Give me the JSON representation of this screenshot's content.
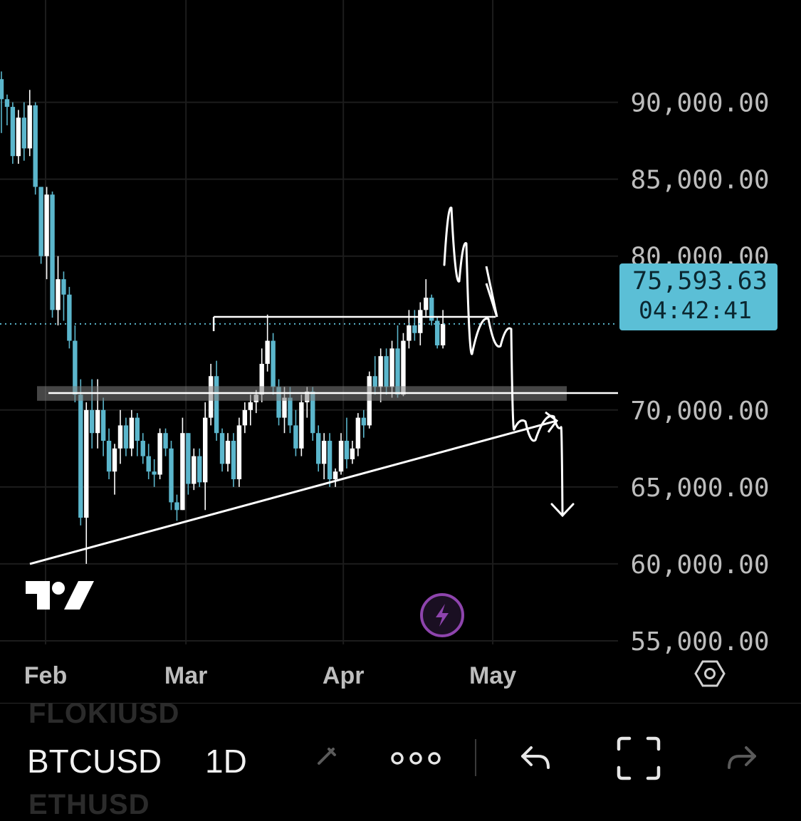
{
  "chart_data": {
    "type": "candlestick",
    "symbol": "BTCUSD",
    "interval": "1D",
    "ylim": [
      51500,
      95000
    ],
    "y_ticks": [
      "90,000.00",
      "85,000.00",
      "80,000.00",
      "75,593.63",
      "70,000.00",
      "65,000.00",
      "60,000.00",
      "55,000.00"
    ],
    "y_tick_values": [
      90000,
      85000,
      80000,
      70000,
      65000,
      60000,
      55000
    ],
    "x_ticks": [
      "Feb",
      "Mar",
      "Apr",
      "May"
    ],
    "last_price": "75,593.63",
    "countdown": "04:42:41",
    "last_price_value": 75593.63,
    "candles": [
      [
        91500,
        92000,
        88000,
        90200
      ],
      [
        90200,
        90500,
        88500,
        89700
      ],
      [
        89700,
        90000,
        86000,
        86500
      ],
      [
        86500,
        89500,
        86000,
        89000
      ],
      [
        89000,
        90000,
        86200,
        87000
      ],
      [
        87000,
        90800,
        86500,
        89800
      ],
      [
        89800,
        90000,
        84000,
        84500
      ],
      [
        84500,
        84500,
        79500,
        80000
      ],
      [
        80000,
        84500,
        78500,
        84000
      ],
      [
        84000,
        84200,
        76000,
        76500
      ],
      [
        76500,
        80000,
        75500,
        78500
      ],
      [
        78500,
        79000,
        75800,
        77500
      ],
      [
        77500,
        78000,
        74000,
        74500
      ],
      [
        74500,
        75500,
        70500,
        71000
      ],
      [
        71000,
        72000,
        62500,
        63000
      ],
      [
        63000,
        70500,
        60000,
        70000
      ],
      [
        70000,
        72000,
        67500,
        68500
      ],
      [
        68500,
        72000,
        67500,
        70000
      ],
      [
        70000,
        70800,
        67000,
        68000
      ],
      [
        68000,
        68800,
        65500,
        66000
      ],
      [
        66000,
        67800,
        64500,
        67500
      ],
      [
        67500,
        70000,
        66500,
        69000
      ],
      [
        69000,
        69500,
        67000,
        67500
      ],
      [
        67500,
        70000,
        67000,
        69500
      ],
      [
        69500,
        69800,
        67000,
        68000
      ],
      [
        68000,
        68500,
        66500,
        67000
      ],
      [
        67000,
        67800,
        65500,
        66000
      ],
      [
        66000,
        66800,
        65000,
        65800
      ],
      [
        65800,
        68800,
        65500,
        68500
      ],
      [
        68500,
        68800,
        67000,
        67500
      ],
      [
        67500,
        68000,
        63500,
        64000
      ],
      [
        64000,
        64500,
        62800,
        63500
      ],
      [
        63500,
        69500,
        63500,
        68500
      ],
      [
        68500,
        68500,
        64500,
        65200
      ],
      [
        65200,
        67500,
        64800,
        67000
      ],
      [
        67000,
        67500,
        65000,
        65300
      ],
      [
        65300,
        70500,
        63500,
        69500
      ],
      [
        69500,
        73000,
        69000,
        72200
      ],
      [
        72200,
        73200,
        68000,
        68500
      ],
      [
        68500,
        68800,
        66000,
        66500
      ],
      [
        66500,
        68500,
        66000,
        68000
      ],
      [
        68000,
        68500,
        65000,
        65500
      ],
      [
        65500,
        69500,
        65000,
        69000
      ],
      [
        69000,
        70500,
        68500,
        70000
      ],
      [
        70000,
        71000,
        69000,
        70500
      ],
      [
        70500,
        71300,
        69800,
        71000
      ],
      [
        71000,
        74000,
        70500,
        73000
      ],
      [
        73000,
        76200,
        72500,
        74500
      ],
      [
        74500,
        75000,
        71000,
        71500
      ],
      [
        71500,
        72000,
        69000,
        69500
      ],
      [
        69500,
        71500,
        68500,
        70800
      ],
      [
        70800,
        71500,
        68500,
        69000
      ],
      [
        69000,
        70000,
        67000,
        67500
      ],
      [
        67500,
        71000,
        67000,
        70500
      ],
      [
        70500,
        71500,
        69500,
        71200
      ],
      [
        71200,
        71500,
        68000,
        68500
      ],
      [
        68500,
        69000,
        66000,
        66500
      ],
      [
        66500,
        68500,
        65500,
        68000
      ],
      [
        68000,
        68500,
        65000,
        65500
      ],
      [
        65500,
        66200,
        65000,
        66000
      ],
      [
        66000,
        68500,
        65800,
        68000
      ],
      [
        68000,
        69500,
        66200,
        66800
      ],
      [
        66800,
        68000,
        66500,
        67500
      ],
      [
        67500,
        69800,
        67000,
        69500
      ],
      [
        69500,
        70000,
        68200,
        69000
      ],
      [
        69000,
        72500,
        68800,
        72200
      ],
      [
        72200,
        73500,
        71000,
        71500
      ],
      [
        71500,
        74000,
        70500,
        73500
      ],
      [
        73500,
        74000,
        71000,
        71500
      ],
      [
        71500,
        74500,
        70800,
        74000
      ],
      [
        74000,
        75500,
        70800,
        71000
      ],
      [
        71000,
        75000,
        70900,
        74500
      ],
      [
        74500,
        76500,
        74000,
        75500
      ],
      [
        75500,
        76500,
        74500,
        75000
      ],
      [
        75000,
        77000,
        74200,
        76500
      ],
      [
        76500,
        78500,
        76000,
        77300
      ],
      [
        77300,
        77500,
        75500,
        75800
      ],
      [
        75800,
        76000,
        74000,
        74200
      ],
      [
        74200,
        76500,
        74000,
        75593.63
      ]
    ]
  },
  "drawings": {
    "trendline": [
      [
        -1,
        60000
      ],
      [
        61.5,
        69300
      ]
    ],
    "support_zone": [
      70600,
      71550
    ],
    "horizontal_line": 71100,
    "breakout_line": [
      37.5,
      76050
    ],
    "scenario_path": [
      [
        61.5,
        76050
      ],
      [
        63.5,
        80500
      ],
      [
        64.5,
        74500
      ],
      [
        65.5,
        77500
      ],
      [
        66.5,
        70500
      ],
      [
        68.5,
        72000
      ],
      [
        70,
        70600
      ],
      [
        71.5,
        71600
      ],
      [
        72,
        66500
      ],
      [
        73.5,
        67500
      ],
      [
        74.5,
        65800
      ],
      [
        76,
        67500
      ],
      [
        77,
        64000
      ],
      [
        77,
        60700
      ]
    ]
  },
  "colors": {
    "bull": "#ffffff",
    "bear": "#5bb6cc",
    "price_label_bg": "#5bbfd6",
    "grid": "#1c1c1c",
    "axis_text": "#bdbdbd",
    "drawing": "#ffffff",
    "zone": "#808080",
    "lightning": "#8e44ad"
  },
  "ui": {
    "ghost_top": "FLOKIUSD",
    "ghost_bottom": "ETHUSD",
    "toolbar_icons": [
      "pencil-icon",
      "more-icon",
      "undo-icon",
      "fullscreen-icon",
      "redo-icon"
    ],
    "axis_settings_icon": "hexagon-settings-icon"
  }
}
